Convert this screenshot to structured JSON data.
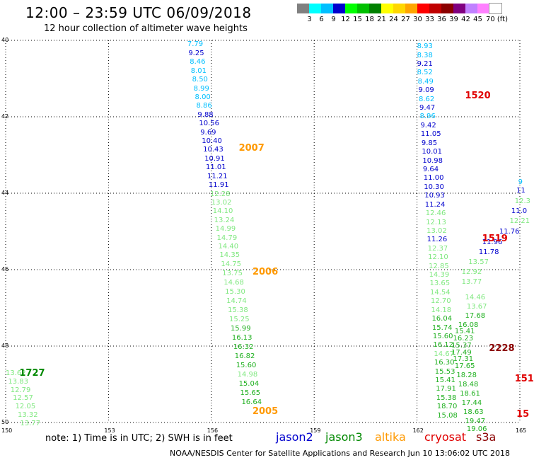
{
  "header": {
    "title": "12:00 – 23:59 UTC 06/09/2018",
    "subtitle": "12 hour collection of altimeter wave heights"
  },
  "scale": {
    "colors": [
      "#808080",
      "#00ffff",
      "#00bfff",
      "#0000cd",
      "#00ff00",
      "#00c000",
      "#008000",
      "#ffff00",
      "#ffd700",
      "#ffa500",
      "#ff0000",
      "#c00000",
      "#8b0000",
      "#800080",
      "#c080ff",
      "#ff80ff",
      "#ffffff"
    ],
    "labels": [
      "3",
      "6",
      "9",
      "12",
      "15",
      "18",
      "21",
      "24",
      "27",
      "30",
      "33",
      "36",
      "39",
      "42",
      "45",
      "70 (ft)"
    ]
  },
  "axes": {
    "x_ticks": [
      {
        "lon": 150,
        "label": "150"
      },
      {
        "lon": 153,
        "label": "153"
      },
      {
        "lon": 156,
        "label": "156"
      },
      {
        "lon": 159,
        "label": "159"
      },
      {
        "lon": 162,
        "label": "162"
      },
      {
        "lon": 165,
        "label": "165"
      }
    ],
    "y_ticks": [
      {
        "lat": 40,
        "label": "40"
      },
      {
        "lat": 42,
        "label": "42"
      },
      {
        "lat": 44,
        "label": "44"
      },
      {
        "lat": 46,
        "label": "46"
      },
      {
        "lat": 48,
        "label": "48"
      },
      {
        "lat": 50,
        "label": "50"
      }
    ]
  },
  "colors": {
    "c6": "#00bfff",
    "c9": "#0000cd",
    "c12": "#80e880",
    "c15": "#20b020",
    "c18": "#007000",
    "time_red": "#e00000",
    "time_orange": "#ff9900",
    "time_green": "#008800",
    "time_dark": "#8b0000",
    "jason2": "#0000cd",
    "jason3": "#008800",
    "altika": "#ff9900",
    "cryosat": "#e00000",
    "s3a": "#8b0000"
  },
  "tracks": [
    {
      "id": "track-2007",
      "time": {
        "label": "2007",
        "color": "time_orange",
        "lon": 156.8,
        "lat": 42.82
      },
      "points": [
        {
          "lon": 155.3,
          "lat": 40.1,
          "v": "7.79",
          "c": "c6"
        },
        {
          "lon": 155.33,
          "lat": 40.33,
          "v": "9.25",
          "c": "c9"
        },
        {
          "lon": 155.37,
          "lat": 40.56,
          "v": "8.46",
          "c": "c6"
        },
        {
          "lon": 155.4,
          "lat": 40.79,
          "v": "8.01",
          "c": "c6"
        },
        {
          "lon": 155.44,
          "lat": 41.02,
          "v": "8.50",
          "c": "c6"
        },
        {
          "lon": 155.48,
          "lat": 41.25,
          "v": "8.99",
          "c": "c6"
        },
        {
          "lon": 155.52,
          "lat": 41.48,
          "v": "8.00",
          "c": "c6"
        },
        {
          "lon": 155.56,
          "lat": 41.71,
          "v": "8.86",
          "c": "c6"
        },
        {
          "lon": 155.6,
          "lat": 41.94,
          "v": "9.88",
          "c": "c9"
        },
        {
          "lon": 155.64,
          "lat": 42.17,
          "v": "10.56",
          "c": "c9"
        },
        {
          "lon": 155.68,
          "lat": 42.4,
          "v": "9.69",
          "c": "c9"
        },
        {
          "lon": 155.72,
          "lat": 42.63,
          "v": "10.40",
          "c": "c9"
        },
        {
          "lon": 155.76,
          "lat": 42.86,
          "v": "10.43",
          "c": "c9"
        },
        {
          "lon": 155.8,
          "lat": 43.09,
          "v": "10.91",
          "c": "c9"
        },
        {
          "lon": 155.84,
          "lat": 43.32,
          "v": "11.01",
          "c": "c9"
        },
        {
          "lon": 155.88,
          "lat": 43.55,
          "v": "11.21",
          "c": "c9"
        },
        {
          "lon": 155.92,
          "lat": 43.78,
          "v": "11.91",
          "c": "c9"
        },
        {
          "lon": 155.96,
          "lat": 44.01,
          "v": "12.28",
          "c": "c12"
        },
        {
          "lon": 156.0,
          "lat": 44.24,
          "v": "13.02",
          "c": "c12"
        },
        {
          "lon": 156.04,
          "lat": 44.47,
          "v": "14.10",
          "c": "c12"
        },
        {
          "lon": 156.08,
          "lat": 44.7,
          "v": "13.24",
          "c": "c12"
        },
        {
          "lon": 156.12,
          "lat": 44.93,
          "v": "14.99",
          "c": "c12"
        },
        {
          "lon": 156.16,
          "lat": 45.16,
          "v": "14.79",
          "c": "c12"
        },
        {
          "lon": 156.2,
          "lat": 45.39,
          "v": "14.40",
          "c": "c12"
        },
        {
          "lon": 156.24,
          "lat": 45.62,
          "v": "14.35",
          "c": "c12"
        }
      ]
    },
    {
      "id": "track-2006",
      "time": {
        "label": "2006",
        "color": "time_orange",
        "lon": 157.2,
        "lat": 46.06
      },
      "points": [
        {
          "lon": 156.28,
          "lat": 45.86,
          "v": "14.75",
          "c": "c12"
        },
        {
          "lon": 156.32,
          "lat": 46.1,
          "v": "13.75",
          "c": "c12"
        },
        {
          "lon": 156.36,
          "lat": 46.34,
          "v": "14.68",
          "c": "c12"
        },
        {
          "lon": 156.4,
          "lat": 46.58,
          "v": "15.30",
          "c": "c12"
        },
        {
          "lon": 156.44,
          "lat": 46.82,
          "v": "14.74",
          "c": "c12"
        },
        {
          "lon": 156.48,
          "lat": 47.06,
          "v": "15.38",
          "c": "c12"
        },
        {
          "lon": 156.52,
          "lat": 47.3,
          "v": "15.25",
          "c": "c12"
        },
        {
          "lon": 156.56,
          "lat": 47.54,
          "v": "15.99",
          "c": "c15"
        },
        {
          "lon": 156.6,
          "lat": 47.78,
          "v": "16.13",
          "c": "c15"
        },
        {
          "lon": 156.64,
          "lat": 48.02,
          "v": "16.32",
          "c": "c15"
        },
        {
          "lon": 156.68,
          "lat": 48.26,
          "v": "16.82",
          "c": "c15"
        },
        {
          "lon": 156.72,
          "lat": 48.5,
          "v": "15.60",
          "c": "c15"
        },
        {
          "lon": 156.76,
          "lat": 48.74,
          "v": "14.98",
          "c": "c12"
        },
        {
          "lon": 156.8,
          "lat": 48.98,
          "v": "15.04",
          "c": "c15"
        },
        {
          "lon": 156.84,
          "lat": 49.22,
          "v": "15.65",
          "c": "c15"
        },
        {
          "lon": 156.88,
          "lat": 49.46,
          "v": "16.64",
          "c": "c15"
        }
      ]
    },
    {
      "id": "track-2005",
      "time": {
        "label": "2005",
        "color": "time_orange",
        "lon": 157.2,
        "lat": 49.7
      },
      "points": []
    },
    {
      "id": "track-1727",
      "time": {
        "label": "1727",
        "color": "time_green",
        "lon": 150.4,
        "lat": 48.7
      },
      "points": [
        {
          "lon": 150.0,
          "lat": 48.7,
          "v": "13.62",
          "c": "c12"
        },
        {
          "lon": 150.07,
          "lat": 48.92,
          "v": "13.83",
          "c": "c12"
        },
        {
          "lon": 150.14,
          "lat": 49.14,
          "v": "12.79",
          "c": "c12"
        },
        {
          "lon": 150.21,
          "lat": 49.36,
          "v": "12.57",
          "c": "c12"
        },
        {
          "lon": 150.28,
          "lat": 49.58,
          "v": "12.05",
          "c": "c12"
        },
        {
          "lon": 150.35,
          "lat": 49.8,
          "v": "13.32",
          "c": "c12"
        },
        {
          "lon": 150.42,
          "lat": 50.02,
          "v": "13.77",
          "c": "c12"
        }
      ]
    },
    {
      "id": "track-1520",
      "time": {
        "label": "1520",
        "color": "time_red",
        "lon": 163.4,
        "lat": 41.45
      },
      "points": [
        {
          "lon": 162.0,
          "lat": 40.15,
          "v": "8.93",
          "c": "c6"
        },
        {
          "lon": 162.0,
          "lat": 40.38,
          "v": "8.38",
          "c": "c6"
        },
        {
          "lon": 162.0,
          "lat": 40.61,
          "v": "9.21",
          "c": "c9"
        },
        {
          "lon": 162.0,
          "lat": 40.84,
          "v": "8.52",
          "c": "c6"
        },
        {
          "lon": 162.02,
          "lat": 41.07,
          "v": "8.49",
          "c": "c6"
        },
        {
          "lon": 162.04,
          "lat": 41.3,
          "v": "9.09",
          "c": "c9"
        },
        {
          "lon": 162.05,
          "lat": 41.53,
          "v": "8.62",
          "c": "c6"
        },
        {
          "lon": 162.07,
          "lat": 41.76,
          "v": "9.47",
          "c": "c9"
        },
        {
          "lon": 162.08,
          "lat": 41.99,
          "v": "8.96",
          "c": "c6"
        },
        {
          "lon": 162.1,
          "lat": 42.22,
          "v": "9.42",
          "c": "c9"
        },
        {
          "lon": 162.11,
          "lat": 42.45,
          "v": "11.05",
          "c": "c9"
        },
        {
          "lon": 162.13,
          "lat": 42.68,
          "v": "9.85",
          "c": "c9"
        },
        {
          "lon": 162.14,
          "lat": 42.91,
          "v": "10.01",
          "c": "c9"
        },
        {
          "lon": 162.16,
          "lat": 43.14,
          "v": "10.98",
          "c": "c9"
        },
        {
          "lon": 162.17,
          "lat": 43.37,
          "v": "9.64",
          "c": "c9"
        },
        {
          "lon": 162.19,
          "lat": 43.6,
          "v": "11.00",
          "c": "c9"
        },
        {
          "lon": 162.2,
          "lat": 43.83,
          "v": "10.30",
          "c": "c9"
        },
        {
          "lon": 162.22,
          "lat": 44.06,
          "v": "10.93",
          "c": "c9"
        },
        {
          "lon": 162.23,
          "lat": 44.29,
          "v": "11.24",
          "c": "c9"
        },
        {
          "lon": 162.25,
          "lat": 44.52,
          "v": "12.46",
          "c": "c12"
        },
        {
          "lon": 162.26,
          "lat": 44.75,
          "v": "12.13",
          "c": "c12"
        },
        {
          "lon": 162.28,
          "lat": 44.98,
          "v": "13.02",
          "c": "c12"
        },
        {
          "lon": 162.29,
          "lat": 45.21,
          "v": "11.26",
          "c": "c9"
        },
        {
          "lon": 162.31,
          "lat": 45.44,
          "v": "12.37",
          "c": "c12"
        },
        {
          "lon": 162.32,
          "lat": 45.67,
          "v": "12.10",
          "c": "c12"
        },
        {
          "lon": 162.34,
          "lat": 45.9,
          "v": "12.85",
          "c": "c12"
        },
        {
          "lon": 162.35,
          "lat": 46.13,
          "v": "14.39",
          "c": "c12"
        },
        {
          "lon": 162.37,
          "lat": 46.36,
          "v": "13.65",
          "c": "c12"
        },
        {
          "lon": 162.38,
          "lat": 46.59,
          "v": "14.54",
          "c": "c12"
        },
        {
          "lon": 162.4,
          "lat": 46.82,
          "v": "12.70",
          "c": "c12"
        },
        {
          "lon": 162.41,
          "lat": 47.05,
          "v": "14.18",
          "c": "c12"
        },
        {
          "lon": 162.43,
          "lat": 47.28,
          "v": "16.04",
          "c": "c15"
        },
        {
          "lon": 162.44,
          "lat": 47.51,
          "v": "15.74",
          "c": "c15"
        },
        {
          "lon": 162.46,
          "lat": 47.74,
          "v": "15.60",
          "c": "c15"
        },
        {
          "lon": 162.47,
          "lat": 47.97,
          "v": "16.12",
          "c": "c15"
        },
        {
          "lon": 162.49,
          "lat": 48.2,
          "v": "14.67",
          "c": "c12"
        },
        {
          "lon": 162.5,
          "lat": 48.43,
          "v": "16.30",
          "c": "c15"
        },
        {
          "lon": 162.52,
          "lat": 48.66,
          "v": "15.53",
          "c": "c15"
        },
        {
          "lon": 162.53,
          "lat": 48.89,
          "v": "15.41",
          "c": "c15"
        },
        {
          "lon": 162.55,
          "lat": 49.12,
          "v": "17.91",
          "c": "c15"
        },
        {
          "lon": 162.56,
          "lat": 49.35,
          "v": "15.38",
          "c": "c15"
        },
        {
          "lon": 162.58,
          "lat": 49.58,
          "v": "18.70",
          "c": "c15"
        },
        {
          "lon": 162.59,
          "lat": 49.81,
          "v": "15.08",
          "c": "c15"
        }
      ]
    },
    {
      "id": "track-2228",
      "time": {
        "label": "2228",
        "color": "time_dark",
        "lon": 164.1,
        "lat": 48.05
      },
      "points": [
        {
          "lon": 163.4,
          "lat": 46.72,
          "v": "14.46",
          "c": "c12"
        },
        {
          "lon": 163.45,
          "lat": 46.96,
          "v": "13.67",
          "c": "c12"
        },
        {
          "lon": 163.4,
          "lat": 47.2,
          "v": "17.68",
          "c": "c15"
        },
        {
          "lon": 163.2,
          "lat": 47.44,
          "v": "16.08",
          "c": "c15"
        },
        {
          "lon": 163.1,
          "lat": 47.62,
          "v": "15.41",
          "c": "c15"
        },
        {
          "lon": 163.05,
          "lat": 47.8,
          "v": "16.23",
          "c": "c15"
        },
        {
          "lon": 163.0,
          "lat": 47.98,
          "v": "15.37",
          "c": "c15"
        },
        {
          "lon": 163.0,
          "lat": 48.16,
          "v": "17.49",
          "c": "c15"
        },
        {
          "lon": 163.05,
          "lat": 48.34,
          "v": "17.31",
          "c": "c15"
        },
        {
          "lon": 163.1,
          "lat": 48.52,
          "v": "17.65",
          "c": "c15"
        },
        {
          "lon": 163.15,
          "lat": 48.76,
          "v": "18.28",
          "c": "c15"
        },
        {
          "lon": 163.2,
          "lat": 49.0,
          "v": "18.48",
          "c": "c15"
        },
        {
          "lon": 163.25,
          "lat": 49.24,
          "v": "18.61",
          "c": "c15"
        },
        {
          "lon": 163.3,
          "lat": 49.48,
          "v": "17.44",
          "c": "c15"
        },
        {
          "lon": 163.35,
          "lat": 49.72,
          "v": "18.63",
          "c": "c15"
        },
        {
          "lon": 163.4,
          "lat": 49.96,
          "v": "19.47",
          "c": "c15"
        },
        {
          "lon": 163.45,
          "lat": 50.16,
          "v": "19.06",
          "c": "c15"
        }
      ]
    },
    {
      "id": "track-1519",
      "time": {
        "label": "1519",
        "color": "time_red",
        "lon": 163.9,
        "lat": 45.19
      },
      "points": [
        {
          "lon": 164.95,
          "lat": 43.7,
          "v": "9",
          "c": "c6"
        },
        {
          "lon": 164.9,
          "lat": 43.93,
          "v": "11",
          "c": "c9"
        },
        {
          "lon": 164.85,
          "lat": 44.2,
          "v": "12.3",
          "c": "c12"
        },
        {
          "lon": 164.75,
          "lat": 44.47,
          "v": "11.0",
          "c": "c9"
        },
        {
          "lon": 164.7,
          "lat": 44.73,
          "v": "12.21",
          "c": "c12"
        },
        {
          "lon": 164.4,
          "lat": 45.0,
          "v": "11.76",
          "c": "c9"
        },
        {
          "lon": 163.9,
          "lat": 45.28,
          "v": "11.96",
          "c": "c9"
        },
        {
          "lon": 163.8,
          "lat": 45.54,
          "v": "11.78",
          "c": "c9"
        },
        {
          "lon": 163.5,
          "lat": 45.8,
          "v": "13.57",
          "c": "c12"
        },
        {
          "lon": 163.3,
          "lat": 46.06,
          "v": "12.92",
          "c": "c12"
        },
        {
          "lon": 163.3,
          "lat": 46.32,
          "v": "13.77",
          "c": "c12"
        }
      ]
    },
    {
      "id": "track-151",
      "time": {
        "label": "151",
        "color": "time_red",
        "lon": 164.85,
        "lat": 48.85
      },
      "points": []
    },
    {
      "id": "track-15",
      "time": {
        "label": "15",
        "color": "time_red",
        "lon": 164.9,
        "lat": 49.78
      },
      "points": []
    }
  ],
  "legend": {
    "note": "note:  1) Time is in UTC;  2) SWH is in feet",
    "sats": [
      {
        "name": "jason2",
        "color": "jason2"
      },
      {
        "name": "jason3",
        "color": "jason3"
      },
      {
        "name": "altika",
        "color": "altika"
      },
      {
        "name": "cryosat",
        "color": "cryosat"
      },
      {
        "name": "s3a",
        "color": "s3a"
      }
    ]
  },
  "footer": "NOAA/NESDIS Center for Satellite Applications and Research    Jun 10 13:06:02 UTC 2018"
}
